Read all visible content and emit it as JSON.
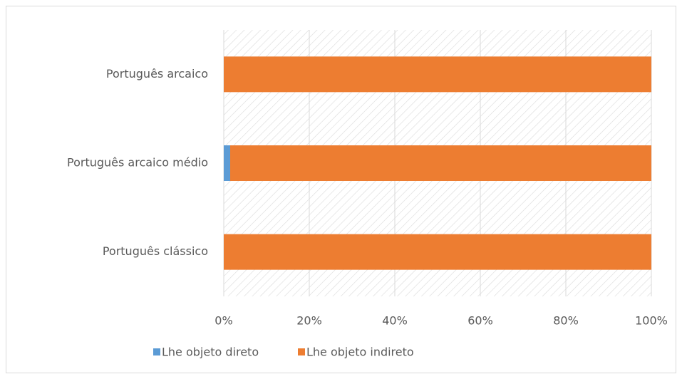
{
  "chart_data": {
    "type": "stacked_barh",
    "categories": [
      "Português arcaico",
      "Português arcaico médio",
      "Português clássico"
    ],
    "series": [
      {
        "name": "Lhe objeto direto",
        "color": "#5b9bd5",
        "values": [
          0,
          1.5,
          0
        ]
      },
      {
        "name": "Lhe objeto indireto",
        "color": "#ed7d31",
        "values": [
          100,
          98.5,
          100
        ]
      }
    ],
    "xlim": [
      0,
      100
    ],
    "xticks": [
      {
        "value": 0,
        "label": "0%"
      },
      {
        "value": 20,
        "label": "20%"
      },
      {
        "value": 40,
        "label": "40%"
      },
      {
        "value": 60,
        "label": "60%"
      },
      {
        "value": 80,
        "label": "80%"
      },
      {
        "value": 100,
        "label": "100%"
      }
    ],
    "grid": true,
    "legend": "bottom"
  }
}
